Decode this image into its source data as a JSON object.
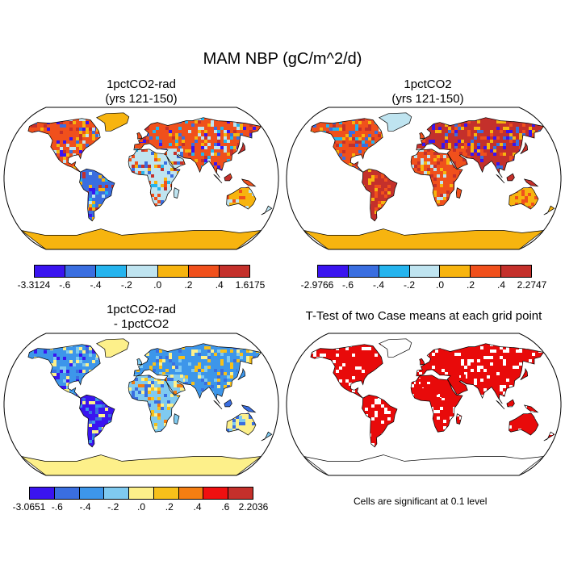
{
  "title": "MAM NBP (gC/m^2/d)",
  "panels": [
    {
      "title_line1": "1pctCO2-rad",
      "title_line2": "(yrs 121-150)",
      "map_style": "diverging",
      "colorbar": {
        "colors": [
          "#3a14f0",
          "#3a6ee0",
          "#25b4ee",
          "#bfe4f0",
          "#f7b40f",
          "#f0501c",
          "#c4302b"
        ],
        "labels": [
          "-3.3124",
          "-.6",
          "-.4",
          "-.2",
          ".0",
          ".2",
          ".4",
          "1.6175"
        ]
      }
    },
    {
      "title_line1": "1pctCO2",
      "title_line2": "(yrs 121-150)",
      "map_style": "diverging",
      "colorbar": {
        "colors": [
          "#3a14f0",
          "#3a6ee0",
          "#25b4ee",
          "#bfe4f0",
          "#f7b40f",
          "#f0501c",
          "#c4302b"
        ],
        "labels": [
          "-2.9766",
          "-.6",
          "-.4",
          "-.2",
          ".0",
          ".2",
          ".4",
          "2.2747"
        ]
      }
    },
    {
      "title_line1": "1pctCO2-rad",
      "title_line2": "- 1pctCO2",
      "map_style": "difference",
      "colorbar": {
        "colors": [
          "#3a14f0",
          "#3a6ee0",
          "#3d96ea",
          "#7fcaf0",
          "#fdf08a",
          "#f7c01a",
          "#f47e12",
          "#f01010",
          "#c4302b"
        ],
        "labels": [
          "-3.0651",
          "-.6",
          "-.4",
          "-.2",
          ".0",
          ".2",
          ".4",
          ".6",
          "2.2036"
        ]
      }
    },
    {
      "title_line1": "T-Test of two Case means at each grid point",
      "title_line2": "",
      "map_style": "significance",
      "footnote": "Cells are significant at 0.1 level"
    }
  ],
  "colors": {
    "land_significant": "#e80a0a",
    "ocean": "#ffffff",
    "coast": "#000000"
  }
}
